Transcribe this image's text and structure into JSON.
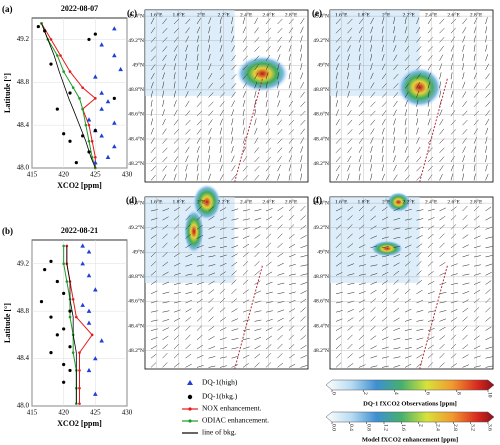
{
  "chart_data": [
    {
      "type": "line-scatter",
      "label": "(a)",
      "title": "2022-08-07",
      "xlabel": "XCO2 [ppm]",
      "ylabel": "Latitude [°]",
      "xlim": [
        415,
        430
      ],
      "ylim": [
        48.0,
        49.4
      ],
      "xticks": [
        415,
        420,
        425,
        430
      ],
      "yticks": [
        {
          "value": 48.0,
          "label": "48.0"
        },
        48.4,
        48.8,
        49.2
      ],
      "points": [
        {
          "name": "DQ-1(high)",
          "color": "#1f3fd6",
          "marker": "triangle",
          "x": [
            428,
            426,
            428,
            429,
            425,
            426,
            427,
            426,
            424,
            428,
            425,
            426,
            428,
            427,
            425
          ],
          "y": [
            49.3,
            49.15,
            49.05,
            48.92,
            48.85,
            48.7,
            48.62,
            48.55,
            48.45,
            48.42,
            48.35,
            48.3,
            48.2,
            48.1,
            48.05
          ]
        },
        {
          "name": "DQ-1(bkg.)",
          "color": "#000000",
          "marker": "circle",
          "x": [
            416,
            417,
            418,
            425,
            424,
            421,
            428,
            419,
            425,
            420,
            423,
            421,
            424,
            422
          ],
          "y": [
            49.32,
            49.28,
            48.97,
            49.25,
            49.2,
            48.7,
            48.65,
            48.55,
            48.35,
            48.32,
            48.3,
            48.25,
            48.15,
            48.05
          ]
        }
      ],
      "lat": [
        49.35,
        49.2,
        49.05,
        48.9,
        48.75,
        48.65,
        48.55,
        48.4,
        48.25,
        48.1,
        48.0
      ],
      "series": [
        {
          "name": "NOX enhancement.",
          "color": "#e8191a",
          "values": [
            416.5,
            418,
            419.5,
            421,
            423,
            425,
            423,
            424,
            424.5,
            425,
            425
          ]
        },
        {
          "name": "ODIAC enhancement.",
          "color": "#1f9a2a",
          "values": [
            416.5,
            417.5,
            419,
            420,
            421.5,
            422.5,
            423,
            423.5,
            424,
            424.5,
            425
          ]
        },
        {
          "name": "line of bkg.",
          "color": "#000000",
          "values": [
            416.5,
            417.5,
            418.5,
            419.3,
            420.2,
            420.8,
            421.5,
            422.5,
            423.5,
            424.3,
            425
          ]
        }
      ]
    },
    {
      "type": "line-scatter",
      "label": "(b)",
      "title": "2022-08-21",
      "xlabel": "XCO2 [ppm]",
      "ylabel": "Latitude [°]",
      "xlim": [
        415,
        430
      ],
      "ylim": [
        48.0,
        49.4
      ],
      "xticks": [
        415,
        420,
        425,
        430
      ],
      "yticks": [
        {
          "value": 48.0,
          "label": "48.0"
        },
        48.4,
        48.8,
        49.2
      ],
      "points": [
        {
          "name": "DQ-1(high)",
          "color": "#1f3fd6",
          "marker": "triangle",
          "x": [
            423,
            424,
            423,
            424,
            425,
            423,
            424,
            424,
            426,
            425,
            424,
            425
          ],
          "y": [
            49.35,
            49.3,
            49.2,
            49.1,
            48.98,
            48.85,
            48.8,
            48.7,
            48.55,
            48.4,
            48.3,
            48.1
          ]
        },
        {
          "name": "DQ-1(bkg.)",
          "color": "#000000",
          "marker": "circle",
          "x": [
            418,
            417,
            419,
            420,
            416.5,
            421,
            418,
            420,
            419,
            421,
            418,
            420,
            421,
            420
          ],
          "y": [
            49.22,
            49.15,
            49.05,
            48.95,
            48.88,
            48.8,
            48.75,
            48.65,
            48.6,
            48.5,
            48.45,
            48.35,
            48.3,
            48.2
          ]
        }
      ],
      "lat": [
        49.35,
        49.2,
        49.05,
        48.9,
        48.75,
        48.6,
        48.45,
        48.3,
        48.15,
        48.02
      ],
      "series": [
        {
          "name": "NOX enhancement.",
          "color": "#e8191a",
          "values": [
            420.5,
            420.5,
            421,
            421.5,
            422,
            424.5,
            422.5,
            422.5,
            422.5,
            422.5
          ]
        },
        {
          "name": "ODIAC enhancement.",
          "color": "#1f9a2a",
          "values": [
            420,
            420,
            420.5,
            421,
            421,
            421.5,
            421.5,
            422,
            422,
            422
          ]
        },
        {
          "name": "line of bkg.",
          "color": "#000000",
          "values": [
            420.5,
            420.5,
            421,
            421,
            421.5,
            421.5,
            422,
            422,
            422,
            422
          ]
        }
      ]
    }
  ],
  "maps": {
    "xlim": [
      1.5,
      2.95
    ],
    "ylim": [
      48.05,
      49.45
    ],
    "xticks": [
      {
        "value": 1.6,
        "label": "1.6°E"
      },
      {
        "value": 1.8,
        "label": "1.8°E"
      },
      {
        "value": 2.0,
        "label": "2°E"
      },
      {
        "value": 2.2,
        "label": "2.2°E"
      },
      {
        "value": 2.4,
        "label": "2.4°E"
      },
      {
        "value": 2.6,
        "label": "2.6°E"
      },
      {
        "value": 2.8,
        "label": "2.8°E"
      }
    ],
    "yticks": [
      {
        "value": 49.4,
        "label": "49.4°N"
      },
      {
        "value": 49.2,
        "label": "49.2°N"
      },
      {
        "value": 49.0,
        "label": "49°N"
      },
      {
        "value": 48.8,
        "label": "48.8°N"
      },
      {
        "value": 48.6,
        "label": "48.6°N"
      },
      {
        "value": 48.4,
        "label": "48.4°N"
      },
      {
        "value": 48.2,
        "label": "48.2°N"
      }
    ],
    "panels": [
      "(c)",
      "(e)",
      "(d)",
      "(f)"
    ]
  },
  "colorbars": [
    {
      "title": "DQ-1 fXCO2 Observations [ppm]",
      "lim": [
        0,
        10
      ],
      "ticks": [
        0,
        2,
        4,
        6,
        8,
        10
      ]
    },
    {
      "title": "Model fXCO2 enhancement [ppm]",
      "lim": [
        0,
        3.6
      ],
      "ticks": [
        {
          "value": 0,
          "label": "0.0"
        },
        0.4,
        0.8,
        1.2,
        1.6,
        2.0,
        2.4,
        2.8,
        3.2,
        3.6
      ]
    }
  ]
}
